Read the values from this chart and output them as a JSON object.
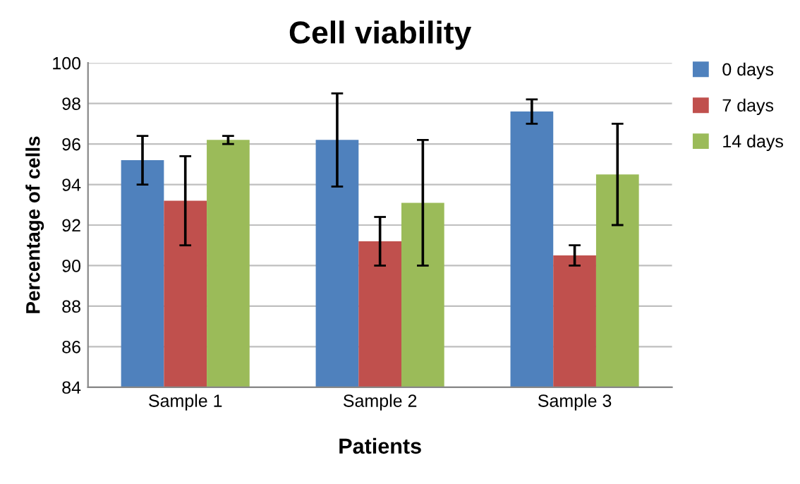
{
  "chart_data": {
    "type": "bar",
    "title": "Cell viability",
    "xlabel": "Patients",
    "ylabel": "Percentage of cells",
    "categories": [
      "Sample 1",
      "Sample 2",
      "Sample 3"
    ],
    "series": [
      {
        "name": "0 days",
        "color": "#4f81bd",
        "values": [
          95.2,
          96.2,
          97.6
        ],
        "errors": [
          1.2,
          2.3,
          0.6
        ]
      },
      {
        "name": "7 days",
        "color": "#c0504d",
        "values": [
          93.2,
          91.2,
          90.5
        ],
        "errors": [
          2.2,
          1.2,
          0.5
        ]
      },
      {
        "name": "14 days",
        "color": "#9bbb59",
        "values": [
          96.2,
          93.1,
          94.5
        ],
        "errors": [
          0.2,
          3.1,
          2.5
        ]
      }
    ],
    "ylim": [
      84,
      100
    ],
    "yticks": [
      84,
      86,
      88,
      90,
      92,
      94,
      96,
      98,
      100
    ],
    "grid": "y",
    "legend": "right"
  }
}
